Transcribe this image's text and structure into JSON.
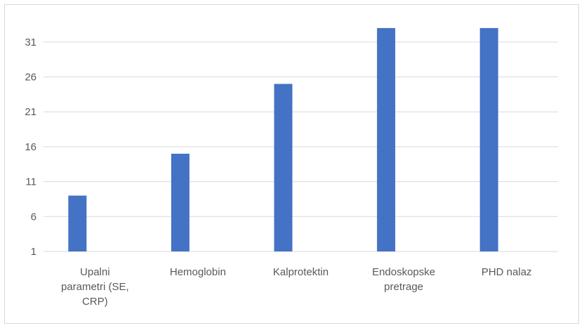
{
  "chart_data": {
    "type": "bar",
    "title": "",
    "xlabel": "",
    "ylabel": "",
    "categories": [
      [
        "Upalni",
        "parametri (SE,",
        "CRP)"
      ],
      [
        "Hemoglobin"
      ],
      [
        "Kalprotektin"
      ],
      [
        "Endoskopske",
        "pretrage"
      ],
      [
        "PHD nalaz"
      ]
    ],
    "values": [
      9,
      15,
      25,
      33,
      33
    ],
    "ylim": [
      1,
      34
    ],
    "yticks": [
      1,
      6,
      11,
      16,
      21,
      26,
      31
    ],
    "grid": true,
    "legend": "none",
    "bar_color": "#4472c4",
    "grid_color": "#d9d9d9"
  }
}
